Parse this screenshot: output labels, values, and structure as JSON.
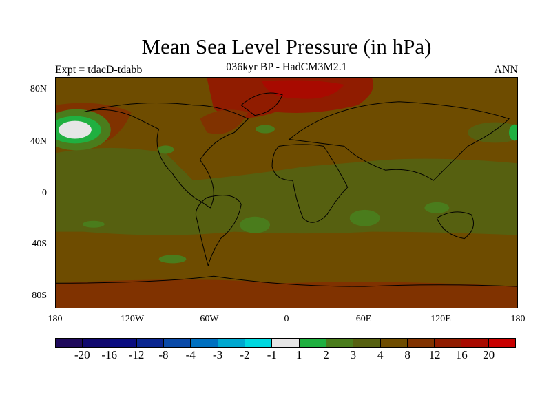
{
  "title": "Mean Sea Level Pressure (in hPa)",
  "left_subtitle": "Expt = tdacD-tdabb",
  "center_subtitle": "036kyr BP - HadCM3M2.1",
  "right_subtitle": "ANN",
  "lat_labels": [
    "80N",
    "40N",
    "0",
    "40S",
    "80S"
  ],
  "lon_labels": [
    "180",
    "120W",
    "60W",
    "0",
    "60E",
    "120E",
    "180"
  ],
  "colorbar": {
    "labels": [
      "-20",
      "-16",
      "-12",
      "-8",
      "-4",
      "-3",
      "-2",
      "-1",
      "1",
      "2",
      "3",
      "4",
      "8",
      "12",
      "16",
      "20"
    ],
    "colors": [
      "#1f0a5c",
      "#10086e",
      "#0a0c80",
      "#0a2690",
      "#0a4aa8",
      "#0070c0",
      "#00a8d0",
      "#00d8e0",
      "#e6e6e6",
      "#20b040",
      "#4a7c1c",
      "#566010",
      "#6e4c00",
      "#803200",
      "#901c00",
      "#a80a00",
      "#c80000"
    ]
  }
}
